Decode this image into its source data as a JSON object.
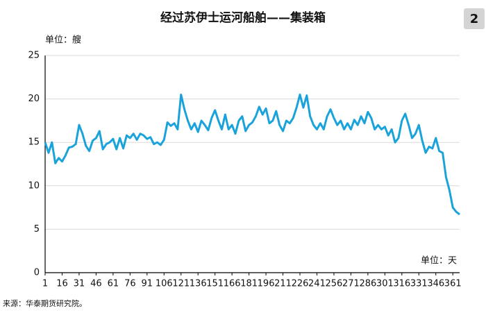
{
  "chart_data": {
    "type": "line",
    "title": "经过苏伊士运河船舶——集装箱",
    "badge": "2",
    "y_label": "单位：艘",
    "x_label": "单位：天",
    "source": "来源：华泰期货研究院。",
    "x": [
      1,
      4,
      7,
      10,
      13,
      16,
      19,
      22,
      25,
      28,
      31,
      34,
      37,
      40,
      43,
      46,
      49,
      52,
      55,
      58,
      61,
      64,
      67,
      70,
      73,
      76,
      79,
      82,
      85,
      88,
      91,
      94,
      97,
      100,
      103,
      106,
      109,
      112,
      115,
      118,
      121,
      124,
      127,
      130,
      133,
      136,
      139,
      142,
      145,
      148,
      151,
      154,
      157,
      160,
      163,
      166,
      169,
      172,
      175,
      178,
      181,
      184,
      187,
      190,
      193,
      196,
      199,
      202,
      205,
      208,
      211,
      214,
      217,
      220,
      223,
      226,
      229,
      232,
      235,
      238,
      241,
      244,
      247,
      250,
      253,
      256,
      259,
      262,
      265,
      268,
      271,
      274,
      277,
      280,
      283,
      286,
      289,
      292,
      295,
      298,
      301,
      304,
      307,
      310,
      313,
      316,
      319,
      322,
      325,
      328,
      331,
      334,
      337,
      340,
      343,
      346,
      349,
      352,
      355,
      358,
      361,
      364,
      367
    ],
    "series": [
      {
        "name": "集装箱",
        "color": "#1aa3da",
        "values": [
          15.0,
          13.8,
          15.0,
          12.6,
          13.2,
          12.8,
          13.5,
          14.4,
          14.5,
          14.8,
          17.0,
          16.0,
          14.6,
          14.0,
          15.2,
          15.5,
          16.3,
          14.2,
          14.8,
          15.0,
          15.4,
          14.2,
          15.5,
          14.3,
          15.8,
          15.5,
          16.0,
          15.3,
          16.0,
          15.8,
          15.4,
          15.6,
          14.8,
          15.0,
          14.7,
          15.3,
          17.3,
          16.9,
          17.2,
          16.5,
          20.5,
          18.8,
          17.5,
          16.5,
          17.2,
          16.2,
          17.5,
          17.0,
          16.4,
          17.8,
          18.7,
          17.5,
          16.5,
          18.2,
          16.5,
          17.0,
          16.0,
          17.5,
          18.0,
          16.3,
          17.0,
          17.3,
          18.0,
          19.1,
          18.2,
          18.9,
          17.2,
          17.5,
          18.6,
          17.0,
          16.3,
          17.5,
          17.2,
          17.8,
          19.0,
          20.5,
          19.0,
          20.4,
          18.0,
          17.0,
          16.5,
          17.2,
          16.5,
          18.0,
          18.8,
          17.8,
          17.0,
          17.5,
          16.5,
          17.2,
          16.5,
          17.6,
          17.0,
          18.0,
          17.2,
          18.5,
          17.8,
          16.5,
          17.0,
          16.5,
          16.8,
          15.8,
          16.5,
          15.0,
          15.5,
          17.5,
          18.3,
          17.0,
          15.5,
          16.0,
          17.0,
          15.2,
          13.8,
          14.5,
          14.3,
          15.5,
          14.0,
          13.8,
          11.0,
          9.5,
          7.5,
          7.0,
          6.7
        ]
      }
    ],
    "xlim": [
      1,
      367
    ],
    "xticks": [
      1,
      16,
      31,
      46,
      61,
      76,
      91,
      106,
      121,
      136,
      151,
      166,
      181,
      196,
      211,
      226,
      241,
      256,
      271,
      286,
      301,
      316,
      331,
      346,
      361
    ],
    "ylim": [
      0,
      25
    ],
    "yticks": [
      0,
      5,
      10,
      15,
      20,
      25
    ],
    "grid": true
  }
}
